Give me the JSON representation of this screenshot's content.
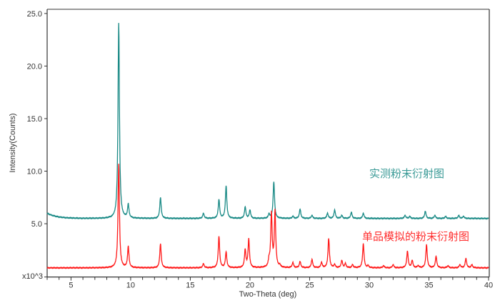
{
  "chart_data": {
    "type": "line",
    "title": "",
    "xlabel": "Two-Theta (deg)",
    "ylabel": "Intensity(Counts)",
    "y_multiplier_label": "x10^3",
    "xlim": [
      3,
      40
    ],
    "ylim": [
      0,
      25.4
    ],
    "xticks": [
      5,
      10,
      15,
      20,
      25,
      30,
      35,
      40
    ],
    "yticks": [
      "5.0",
      "10.0",
      "15.0",
      "20.0",
      "25.0"
    ],
    "grid": false,
    "series": [
      {
        "name": "实测粉末衍射图",
        "color": "#1a8a86",
        "baseline": 5.5,
        "start_value": 6.0,
        "peaks": [
          [
            9.0,
            24.1
          ],
          [
            9.8,
            6.8
          ],
          [
            12.5,
            7.5
          ],
          [
            16.1,
            6.0
          ],
          [
            17.4,
            7.3
          ],
          [
            18.0,
            8.6
          ],
          [
            19.6,
            6.6
          ],
          [
            20.0,
            6.3
          ],
          [
            21.6,
            5.9
          ],
          [
            22.0,
            9.0
          ],
          [
            23.6,
            5.7
          ],
          [
            24.2,
            6.4
          ],
          [
            25.2,
            5.8
          ],
          [
            26.5,
            6.0
          ],
          [
            27.1,
            6.3
          ],
          [
            27.7,
            5.8
          ],
          [
            28.5,
            6.1
          ],
          [
            29.5,
            6.0
          ],
          [
            33.0,
            5.8
          ],
          [
            33.4,
            5.7
          ],
          [
            34.7,
            6.2
          ],
          [
            35.5,
            5.8
          ],
          [
            36.4,
            5.7
          ],
          [
            37.5,
            5.8
          ],
          [
            37.9,
            5.7
          ]
        ]
      },
      {
        "name": "单品模拟的粉末衍射图",
        "color": "#ff1a1a",
        "baseline": 0.8,
        "start_value": 0.8,
        "peaks": [
          [
            9.0,
            10.7
          ],
          [
            9.8,
            2.8
          ],
          [
            12.5,
            3.1
          ],
          [
            16.1,
            1.2
          ],
          [
            17.4,
            3.8
          ],
          [
            18.0,
            2.3
          ],
          [
            19.6,
            2.5
          ],
          [
            19.9,
            3.5
          ],
          [
            21.6,
            1.4
          ],
          [
            21.8,
            5.9
          ],
          [
            22.1,
            6.1
          ],
          [
            22.5,
            1.0
          ],
          [
            23.6,
            1.3
          ],
          [
            24.2,
            1.4
          ],
          [
            25.2,
            1.6
          ],
          [
            26.0,
            1.3
          ],
          [
            26.6,
            3.6
          ],
          [
            27.1,
            1.1
          ],
          [
            27.7,
            1.5
          ],
          [
            28.0,
            1.2
          ],
          [
            28.6,
            1.1
          ],
          [
            29.5,
            3.1
          ],
          [
            29.9,
            1.0
          ],
          [
            31.2,
            1.0
          ],
          [
            32.0,
            1.1
          ],
          [
            33.2,
            2.4
          ],
          [
            33.6,
            1.5
          ],
          [
            34.1,
            1.0
          ],
          [
            34.8,
            3.0
          ],
          [
            35.6,
            1.9
          ],
          [
            36.6,
            1.0
          ],
          [
            37.6,
            1.1
          ],
          [
            38.1,
            1.7
          ],
          [
            38.6,
            1.1
          ]
        ]
      }
    ]
  }
}
